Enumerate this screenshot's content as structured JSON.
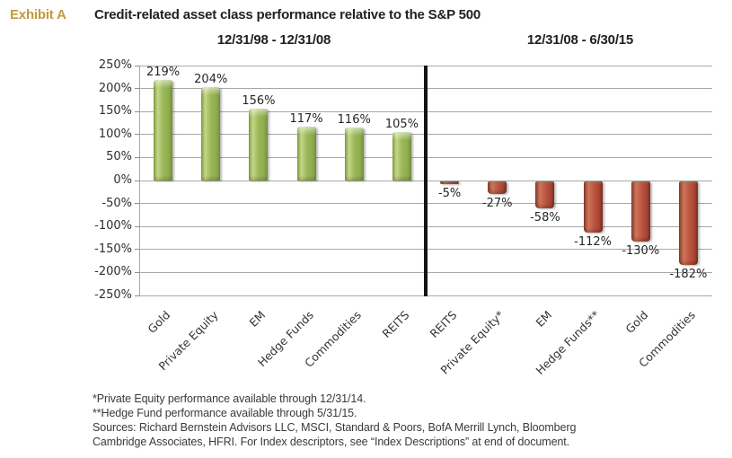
{
  "exhibit_label": "Exhibit A",
  "title": "Credit-related asset class performance relative to the S&P 500",
  "chart_data": {
    "type": "bar",
    "ylim": [
      -250,
      250
    ],
    "ytick_step": 50,
    "ytick_suffix": "%",
    "grid": true,
    "legend": "none",
    "separator_after_panel": 0,
    "panels": [
      {
        "period": "12/31/98 - 12/31/08",
        "color": "#9BBB59",
        "categories": [
          "Gold",
          "Private Equity",
          "EM",
          "Hedge Funds",
          "Commodities",
          "REITS"
        ],
        "values": [
          219,
          204,
          156,
          117,
          116,
          105
        ]
      },
      {
        "period": "12/31/08 - 6/30/15",
        "color": "#C0504D",
        "categories": [
          "REITS",
          "Private Equity*",
          "EM",
          "Hedge Funds**",
          "Gold",
          "Commodities"
        ],
        "values": [
          -5,
          -27,
          -58,
          -112,
          -130,
          -182
        ]
      }
    ],
    "value_label_suffix": "%"
  },
  "footnotes": [
    "*Private Equity performance available through 12/31/14.",
    "**Hedge Fund performance available through 5/31/15.",
    "Sources: Richard Bernstein Advisors LLC, MSCI, Standard & Poors, BofA Merrill Lynch, Bloomberg",
    "Cambridge Associates, HFRI. For Index descriptors, see “Index Descriptions” at end of document."
  ]
}
